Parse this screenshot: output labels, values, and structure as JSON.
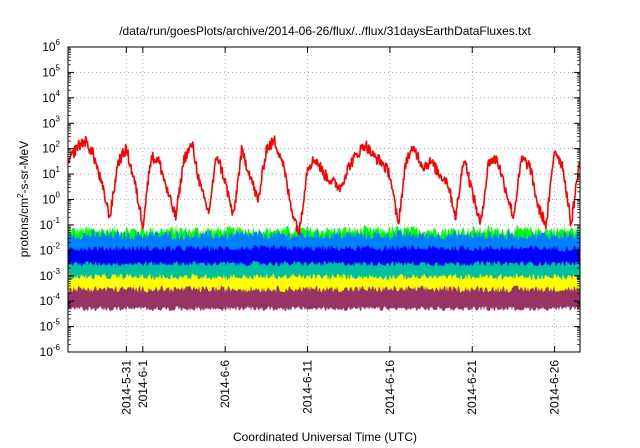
{
  "chart_data": {
    "type": "line",
    "title": "/data/run/goesPlots/archive/2014-06-26/flux/../flux/31daysEarthDataFluxes.txt",
    "xlabel": "Coordinated Universal Time (UTC)",
    "ylabel": {
      "base": "protons/cm",
      "sup": "2",
      "rest": "-s-sr-MeV"
    },
    "y_scale": "log",
    "ylim": [
      1e-06,
      1000000.0
    ],
    "y_ticks": [
      {
        "value": 1e-06,
        "base": "10",
        "exp": "-6"
      },
      {
        "value": 1e-05,
        "base": "10",
        "exp": "-5"
      },
      {
        "value": 0.0001,
        "base": "10",
        "exp": "-4"
      },
      {
        "value": 0.001,
        "base": "10",
        "exp": "-3"
      },
      {
        "value": 0.01,
        "base": "10",
        "exp": "-2"
      },
      {
        "value": 0.1,
        "base": "10",
        "exp": "-1"
      },
      {
        "value": 1,
        "base": "10",
        "exp": "0"
      },
      {
        "value": 10,
        "base": "10",
        "exp": "1"
      },
      {
        "value": 100,
        "base": "10",
        "exp": "2"
      },
      {
        "value": 1000,
        "base": "10",
        "exp": "3"
      },
      {
        "value": 10000,
        "base": "10",
        "exp": "4"
      },
      {
        "value": 100000,
        "base": "10",
        "exp": "5"
      },
      {
        "value": 1000000,
        "base": "10",
        "exp": "6"
      }
    ],
    "xlim": [
      "2014-05-27T11:00",
      "2014-06-27T13:00"
    ],
    "x_ticks": [
      {
        "date": "2014-05-31",
        "label": "2014-5-31"
      },
      {
        "date": "2014-06-01",
        "label": "2014-6-1"
      },
      {
        "date": "2014-06-06",
        "label": "2014-6-6"
      },
      {
        "date": "2014-06-11",
        "label": "2014-6-11"
      },
      {
        "date": "2014-06-16",
        "label": "2014-6-16"
      },
      {
        "date": "2014-06-21",
        "label": "2014-6-21"
      },
      {
        "date": "2014-06-26",
        "label": "2014-6-26"
      }
    ],
    "grid": true,
    "series": [
      {
        "color": "#ff0000",
        "x": [
          "2014-05-27T12:00",
          "2014-05-28T00:00",
          "2014-05-28T12:00",
          "2014-05-29T00:00",
          "2014-05-29T12:00",
          "2014-05-30T00:00",
          "2014-05-30T12:00",
          "2014-05-31T00:00",
          "2014-05-31T12:00",
          "2014-06-01T00:00",
          "2014-06-01T12:00",
          "2014-06-02T00:00",
          "2014-06-02T12:00",
          "2014-06-03T00:00",
          "2014-06-03T12:00",
          "2014-06-04T00:00",
          "2014-06-04T12:00",
          "2014-06-05T00:00",
          "2014-06-05T12:00",
          "2014-06-06T00:00",
          "2014-06-06T12:00",
          "2014-06-07T00:00",
          "2014-06-07T12:00",
          "2014-06-08T00:00",
          "2014-06-08T12:00",
          "2014-06-09T00:00",
          "2014-06-09T12:00",
          "2014-06-10T00:00",
          "2014-06-10T12:00",
          "2014-06-11T00:00",
          "2014-06-11T12:00",
          "2014-06-12T00:00",
          "2014-06-12T12:00",
          "2014-06-13T00:00",
          "2014-06-13T12:00",
          "2014-06-14T00:00",
          "2014-06-14T12:00",
          "2014-06-15T00:00",
          "2014-06-15T12:00",
          "2014-06-16T00:00",
          "2014-06-16T12:00",
          "2014-06-17T00:00",
          "2014-06-17T12:00",
          "2014-06-18T00:00",
          "2014-06-18T12:00",
          "2014-06-19T00:00",
          "2014-06-19T12:00",
          "2014-06-20T00:00",
          "2014-06-20T12:00",
          "2014-06-21T00:00",
          "2014-06-21T12:00",
          "2014-06-22T00:00",
          "2014-06-22T12:00",
          "2014-06-23T00:00",
          "2014-06-23T12:00",
          "2014-06-24T00:00",
          "2014-06-24T12:00",
          "2014-06-25T00:00",
          "2014-06-25T12:00",
          "2014-06-26T00:00",
          "2014-06-26T12:00",
          "2014-06-27T00:00",
          "2014-06-27T12:00"
        ],
        "y": [
          30,
          120,
          200,
          60,
          4,
          0.2,
          30,
          100,
          5,
          0.1,
          50,
          30,
          2,
          0.2,
          40,
          150,
          3,
          0.3,
          60,
          5,
          0.2,
          80,
          10,
          0.8,
          100,
          200,
          30,
          0.5,
          0.05,
          20,
          40,
          10,
          5,
          3,
          20,
          60,
          150,
          50,
          30,
          10,
          0.1,
          40,
          100,
          20,
          30,
          10,
          5,
          0.2,
          50,
          2,
          0.1,
          30,
          40,
          3,
          0.2,
          40,
          20,
          0.5,
          0.1,
          100,
          20,
          0.1,
          30
        ]
      },
      {
        "color": "#00ff00",
        "y_low": 0.004,
        "y_high": 0.06
      },
      {
        "color": "#0080ff",
        "y_low": 0.003,
        "y_high": 0.04
      },
      {
        "color": "#0000ff",
        "y_low": 0.002,
        "y_high": 0.012
      },
      {
        "color": "#00c0a0",
        "y_low": 0.0007,
        "y_high": 0.003
      },
      {
        "color": "#ffff00",
        "y_low": 0.00015,
        "y_high": 0.0009
      },
      {
        "color": "#993366",
        "y_low": 5e-05,
        "y_high": 0.0003
      }
    ]
  }
}
